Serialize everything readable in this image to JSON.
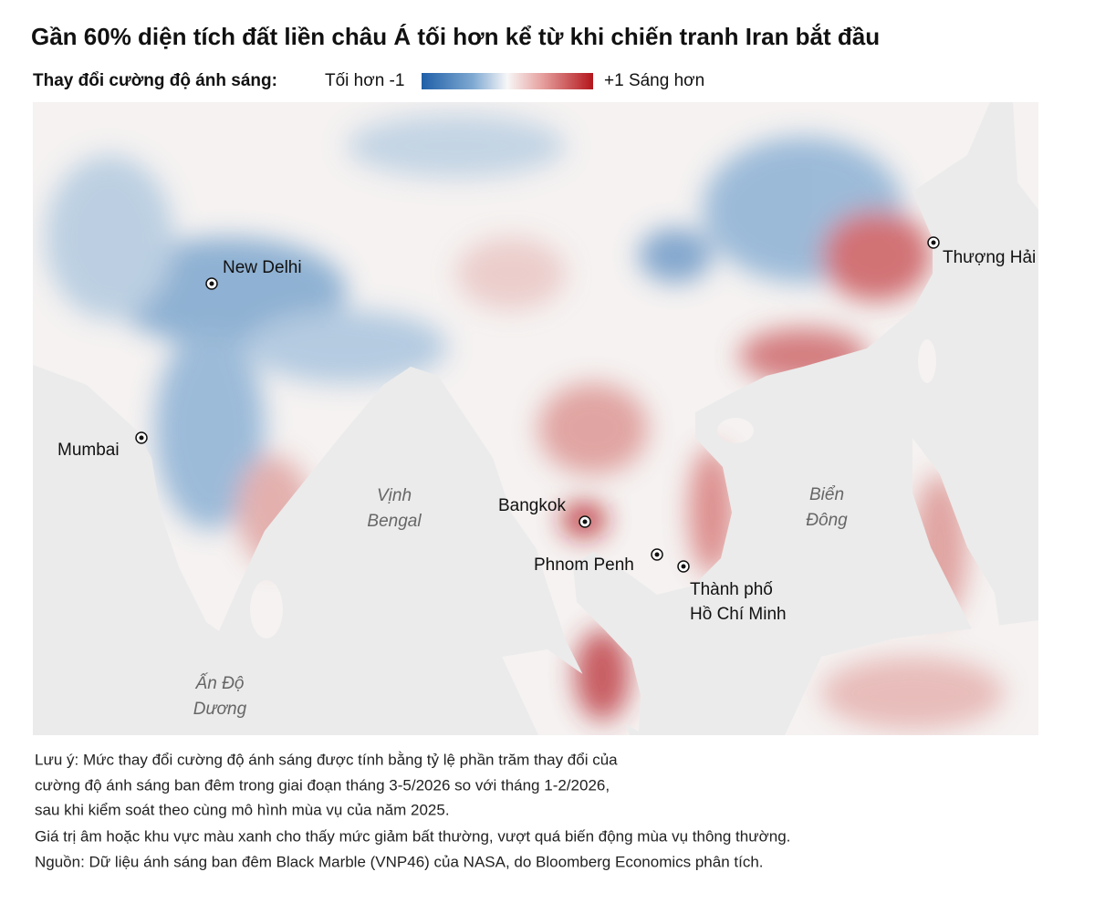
{
  "title": "Gần 60% diện tích đất liền châu Á tối hơn kể từ khi chiến tranh Iran bắt đầu",
  "legend": {
    "label": "Thay đổi cường độ ánh sáng:",
    "left_label": "Tối hơn -1",
    "right_label": "+1 Sáng hơn"
  },
  "places": [
    {
      "label": "New Delhi"
    },
    {
      "label": "Mumbai"
    },
    {
      "label": "Bangkok"
    },
    {
      "label": "Phnom Penh"
    },
    {
      "label": [
        "Thành phố",
        "Hồ Chí Minh"
      ]
    },
    {
      "label": "Thượng Hải"
    }
  ],
  "water": [
    {
      "label": [
        "Vịnh",
        "Bengal"
      ]
    },
    {
      "label": [
        "Biển",
        "Đông"
      ]
    },
    {
      "label": [
        "Ấn Độ",
        "Dương"
      ]
    }
  ],
  "notes": [
    "Lưu ý: Mức thay đổi cường độ ánh sáng được tính bằng tỷ lệ phần trăm thay đổi của",
    "cường độ ánh sáng ban đêm trong giai đoạn tháng 3-5/2026 so với tháng 1-2/2026,",
    "sau khi kiểm soát theo cùng mô hình mùa vụ của năm 2025.",
    "Giá trị âm hoặc khu vực màu xanh cho thấy mức giảm bất thường, vượt quá biến động mùa vụ thông thường.",
    "Nguồn: Dữ liệu ánh sáng ban đêm Black Marble (VNP46) của NASA, do Bloomberg Economics phân tích."
  ]
}
